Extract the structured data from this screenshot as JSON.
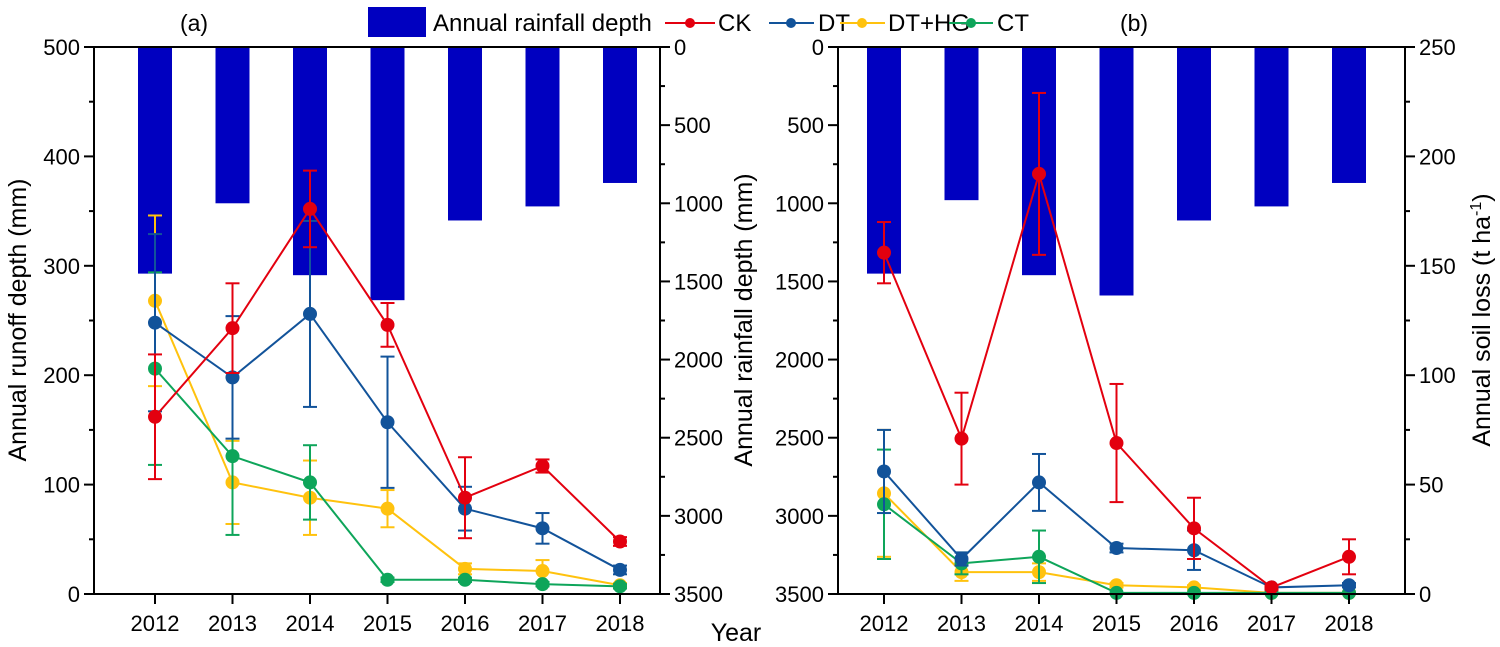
{
  "chart_data": [
    {
      "panel": "(a)",
      "type": "line",
      "subtype": "line with error bars over inverted bars",
      "title": "(a)",
      "xlabel": "Year",
      "ylabel": "Annual runoff depth (mm)",
      "y2label": "Annual rainfall depth (mm)",
      "categories": [
        "2012",
        "2013",
        "2014",
        "2015",
        "2016",
        "2017",
        "2018"
      ],
      "ylim": [
        0,
        500
      ],
      "yticks": [
        0,
        100,
        200,
        300,
        400,
        500
      ],
      "y2lim": [
        3500,
        0
      ],
      "y2_inverted": true,
      "y2ticks": [
        0,
        500,
        1000,
        1500,
        2000,
        2500,
        3000,
        3500
      ],
      "bars": {
        "name": "Annual rainfall depth",
        "axis": "y2",
        "values": [
          1450,
          1000,
          1460,
          1620,
          1110,
          1020,
          870
        ]
      },
      "series": [
        {
          "name": "CK",
          "values": [
            162,
            243,
            352,
            246,
            88,
            117,
            48
          ],
          "errors": [
            57,
            41,
            35,
            20,
            37,
            6,
            4
          ]
        },
        {
          "name": "DT",
          "values": [
            248,
            198,
            256,
            157,
            78,
            60,
            22
          ],
          "errors": [
            81,
            56,
            85,
            60,
            20,
            14,
            4
          ]
        },
        {
          "name": "DT+HG",
          "values": [
            268,
            102,
            88,
            78,
            23,
            21,
            8
          ],
          "errors": [
            78,
            38,
            34,
            17,
            5,
            10,
            2
          ]
        },
        {
          "name": "CT",
          "values": [
            206,
            126,
            102,
            13,
            13,
            9,
            7
          ],
          "errors": [
            88,
            72,
            34,
            2,
            2,
            2,
            2
          ]
        }
      ]
    },
    {
      "panel": "(b)",
      "type": "line",
      "subtype": "line with error bars over inverted bars",
      "title": "(b)",
      "xlabel": "Year",
      "ylabel": "Annual rainfall depth (mm)",
      "y2label": "Annual soil loss (t ha-1)",
      "categories": [
        "2012",
        "2013",
        "2014",
        "2015",
        "2016",
        "2017",
        "2018"
      ],
      "ylim": [
        3500,
        0
      ],
      "y_inverted": true,
      "yticks": [
        0,
        500,
        1000,
        1500,
        2000,
        2500,
        3000,
        3500
      ],
      "y2lim": [
        0,
        250
      ],
      "y2ticks": [
        0,
        50,
        100,
        150,
        200,
        250
      ],
      "bars": {
        "name": "Annual rainfall depth",
        "axis": "y",
        "values": [
          1450,
          980,
          1460,
          1590,
          1110,
          1020,
          870
        ]
      },
      "series": [
        {
          "name": "CK",
          "values": [
            156,
            71,
            192,
            69,
            30,
            3,
            17
          ],
          "errors": [
            14,
            21,
            37,
            27,
            14,
            1,
            8
          ]
        },
        {
          "name": "DT",
          "values": [
            56,
            16,
            51,
            21,
            20,
            3,
            4
          ],
          "errors": [
            19,
            3,
            13,
            2,
            9,
            1,
            1
          ]
        },
        {
          "name": "DT+HG",
          "values": [
            46,
            10,
            10,
            4,
            3,
            0.5,
            0.5
          ],
          "errors": [
            29,
            4,
            4,
            1,
            1,
            0.5,
            0.5
          ]
        },
        {
          "name": "CT",
          "values": [
            41,
            14,
            17,
            0.5,
            0.5,
            0.5,
            0.5
          ],
          "errors": [
            25,
            5,
            12,
            0.5,
            0.5,
            0.5,
            0.5
          ]
        }
      ]
    }
  ],
  "legend": {
    "position": "top-center",
    "items": [
      {
        "label": "Annual rainfall depth",
        "kind": "bar",
        "color": "#0000c0"
      },
      {
        "label": "CK",
        "kind": "line",
        "color": "#e3000f"
      },
      {
        "label": "DT",
        "kind": "line",
        "color": "#12539a"
      },
      {
        "label": "DT+HG",
        "kind": "line",
        "color": "#ffc20e"
      },
      {
        "label": "CT",
        "kind": "line",
        "color": "#0ea55a"
      }
    ]
  },
  "labels": {
    "panel_a": "(a)",
    "panel_b": "(b)",
    "xlabel": "Year",
    "runoff_axis": "Annual runoff depth (mm)",
    "rainfall_axis": "Annual rainfall depth (mm)",
    "soil_loss_axis_main": "Annual soil loss (t ha",
    "soil_loss_axis_sup": "-1",
    "soil_loss_axis_end": ")"
  },
  "colors": {
    "bar": "#0000c0",
    "CK": "#e3000f",
    "DT": "#12539a",
    "DT+HG": "#ffc20e",
    "CT": "#0ea55a"
  }
}
